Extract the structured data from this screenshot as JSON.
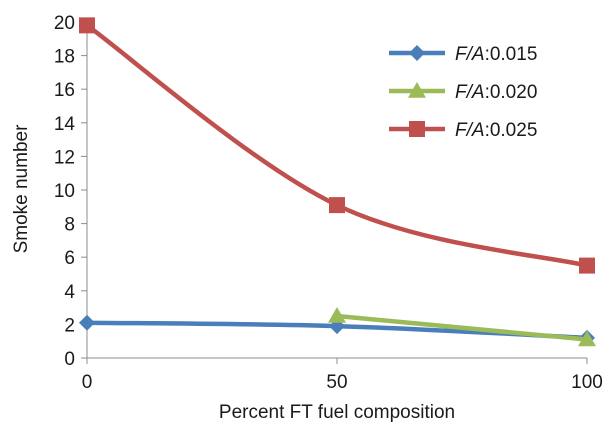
{
  "chart_data": {
    "type": "line",
    "title": "",
    "xlabel": "Percent FT fuel composition",
    "ylabel": "Smoke number",
    "xlim": [
      0,
      100
    ],
    "ylim": [
      0,
      20
    ],
    "x_ticks": [
      0,
      50,
      100
    ],
    "y_ticks": [
      0,
      2,
      4,
      6,
      8,
      10,
      12,
      14,
      16,
      18,
      20
    ],
    "grid": false,
    "legend_position": "top-right",
    "series": [
      {
        "name_prefix": "F/A",
        "name_value": ":0.015",
        "color": "#4a7ebb",
        "marker": "diamond",
        "points": [
          {
            "x": 0,
            "y": 2.1
          },
          {
            "x": 50,
            "y": 1.9
          },
          {
            "x": 100,
            "y": 1.2
          }
        ]
      },
      {
        "name_prefix": "F/A",
        "name_value": ":0.020",
        "color": "#9bbb59",
        "marker": "triangle",
        "points": [
          {
            "x": 50,
            "y": 2.5
          },
          {
            "x": 100,
            "y": 1.1
          }
        ]
      },
      {
        "name_prefix": "F/A",
        "name_value": ":0.025",
        "color": "#c0504d",
        "marker": "square",
        "points": [
          {
            "x": 0,
            "y": 19.8
          },
          {
            "x": 50,
            "y": 9.1
          },
          {
            "x": 100,
            "y": 5.5
          }
        ]
      }
    ]
  }
}
